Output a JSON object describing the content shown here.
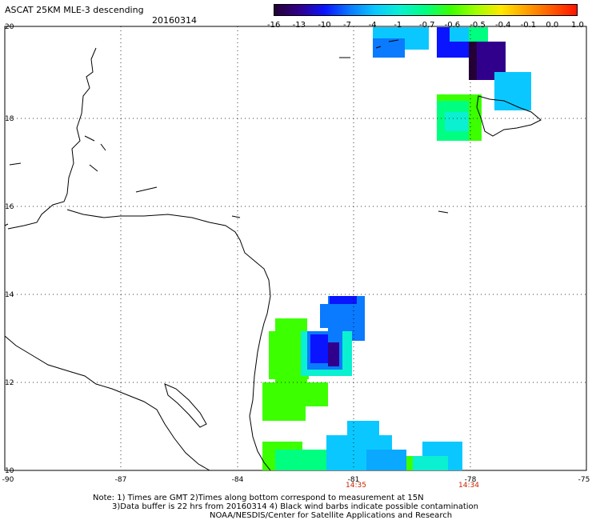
{
  "header": {
    "title": "ASCAT 25KM MLE-3 descending",
    "date": "20160314"
  },
  "colorbar": {
    "labels": [
      "-16",
      "-13",
      "-10",
      "-7",
      "-4",
      "-1",
      "-0.7",
      "-0.6",
      "-0.5",
      "-0.4",
      "-0.1",
      "0.0",
      "1.0"
    ],
    "colors": [
      "#240036",
      "#30008c",
      "#0a14ff",
      "#0a7aff",
      "#0ac8ff",
      "#0af0d0",
      "#00ff80",
      "#3cff00",
      "#a0ff00",
      "#ffe800",
      "#ffa000",
      "#ff5a00",
      "#ff1400"
    ]
  },
  "map": {
    "lat_labels": [
      "20",
      "18",
      "16",
      "14",
      "12",
      "10"
    ],
    "lon_labels": [
      "-90",
      "-87",
      "-84",
      "-81",
      "-78",
      "-75"
    ],
    "times": [
      "14:35",
      "14:34"
    ],
    "time_color": "#cc2200",
    "land_color": "#000000"
  },
  "notes": {
    "line1": "Note: 1) Times are GMT 2)Times along bottom correspond to measurement at 15N",
    "line2": "3)Data buffer is 22 hrs from 20160314 4) Black wind barbs indicate possible contamination",
    "line3": "NOAA/NESDIS/Center for Satellite Applications and Research"
  }
}
